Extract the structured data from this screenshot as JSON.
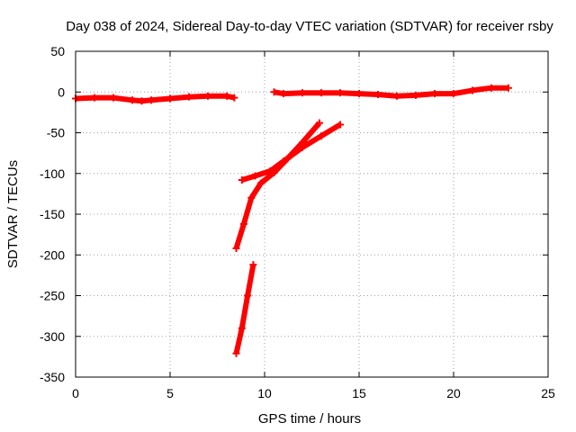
{
  "chart_data": {
    "type": "scatter",
    "title": "Day 038 of 2024, Sidereal Day-to-day VTEC variation (SDTVAR) for receiver rsby",
    "xlabel": "GPS time / hours",
    "ylabel": "SDTVAR / TECUs",
    "xlim": [
      0,
      25
    ],
    "ylim": [
      -350,
      50
    ],
    "xticks": [
      0,
      5,
      10,
      15,
      20,
      25
    ],
    "yticks": [
      50,
      0,
      -50,
      -100,
      -150,
      -200,
      -250,
      -300,
      -350
    ],
    "grid": true,
    "color": "#ff0000",
    "series": [
      {
        "points": [
          [
            0,
            -8
          ],
          [
            1,
            -7
          ],
          [
            2,
            -7
          ],
          [
            3,
            -10
          ],
          [
            3.5,
            -11
          ],
          [
            4,
            -10
          ],
          [
            5,
            -8
          ],
          [
            6,
            -6
          ],
          [
            7,
            -5
          ],
          [
            8,
            -5
          ],
          [
            8.4,
            -7
          ]
        ]
      },
      {
        "points": [
          [
            10.5,
            0
          ],
          [
            11,
            -2
          ],
          [
            12,
            -1
          ],
          [
            13,
            -1
          ],
          [
            14,
            -1
          ],
          [
            15,
            -2
          ],
          [
            16,
            -3
          ],
          [
            17,
            -5
          ],
          [
            18,
            -4
          ],
          [
            19,
            -2
          ],
          [
            20,
            -2
          ],
          [
            21,
            2
          ],
          [
            22,
            5
          ],
          [
            22.9,
            5
          ]
        ]
      },
      {
        "points": [
          [
            8.8,
            -108
          ],
          [
            9.5,
            -103
          ],
          [
            10.3,
            -97
          ],
          [
            11,
            -85
          ],
          [
            12,
            -68
          ],
          [
            13,
            -54
          ],
          [
            14,
            -40
          ]
        ]
      },
      {
        "points": [
          [
            8.5,
            -192
          ],
          [
            8.9,
            -162
          ],
          [
            9.3,
            -130
          ],
          [
            9.8,
            -112
          ],
          [
            10.5,
            -99
          ],
          [
            11.2,
            -82
          ],
          [
            12,
            -62
          ],
          [
            12.9,
            -38
          ]
        ]
      },
      {
        "points": [
          [
            8.5,
            -321
          ],
          [
            8.8,
            -290
          ],
          [
            9.1,
            -250
          ],
          [
            9.4,
            -212
          ]
        ]
      }
    ]
  }
}
